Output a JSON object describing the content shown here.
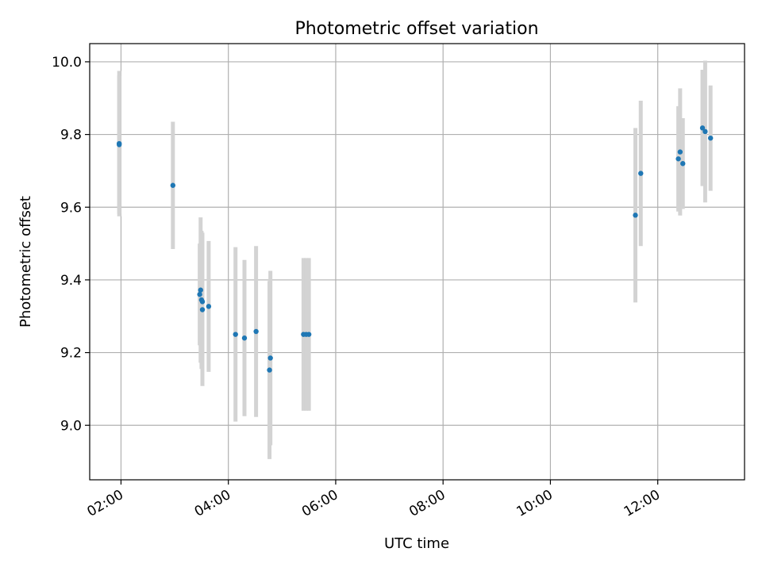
{
  "chart_data": {
    "type": "scatter",
    "title": "Photometric offset variation",
    "xlabel": "UTC time",
    "ylabel": "Photometric offset",
    "x_axis_type": "time",
    "xlim": [
      "01:25",
      "13:37"
    ],
    "ylim": [
      8.85,
      10.05
    ],
    "xticks": [
      "02:00",
      "04:00",
      "06:00",
      "08:00",
      "10:00",
      "12:00"
    ],
    "yticks": [
      9.0,
      9.2,
      9.4,
      9.6,
      9.8,
      10.0
    ],
    "ytick_labels": [
      "9.0",
      "9.2",
      "9.4",
      "9.6",
      "9.8",
      "10.0"
    ],
    "grid": true,
    "marker_color": "#1f77b4",
    "errorbar_color": "#d3d3d3",
    "series": [
      {
        "points": [
          {
            "x": "01:58",
            "y": 9.775,
            "err": 0.2
          },
          {
            "x": "01:58",
            "y": 9.772,
            "err": 0.19
          },
          {
            "x": "02:58",
            "y": 9.66,
            "err": 0.175
          },
          {
            "x": "03:28",
            "y": 9.36,
            "err": 0.14
          },
          {
            "x": "03:29",
            "y": 9.372,
            "err": 0.2
          },
          {
            "x": "03:30",
            "y": 9.345,
            "err": 0.19
          },
          {
            "x": "03:31",
            "y": 9.34,
            "err": 0.19
          },
          {
            "x": "03:31",
            "y": 9.318,
            "err": 0.21
          },
          {
            "x": "03:38",
            "y": 9.327,
            "err": 0.18
          },
          {
            "x": "04:08",
            "y": 9.25,
            "err": 0.24
          },
          {
            "x": "04:18",
            "y": 9.24,
            "err": 0.215
          },
          {
            "x": "04:31",
            "y": 9.258,
            "err": 0.235
          },
          {
            "x": "04:47",
            "y": 9.185,
            "err": 0.24
          },
          {
            "x": "04:46",
            "y": 9.152,
            "err": 0.245
          },
          {
            "x": "05:24",
            "y": 9.25,
            "err": 0.21
          },
          {
            "x": "05:27",
            "y": 9.25,
            "err": 0.21
          },
          {
            "x": "05:30",
            "y": 9.25,
            "err": 0.21
          },
          {
            "x": "11:35",
            "y": 9.578,
            "err": 0.24
          },
          {
            "x": "11:41",
            "y": 9.693,
            "err": 0.2
          },
          {
            "x": "12:23",
            "y": 9.733,
            "err": 0.145
          },
          {
            "x": "12:25",
            "y": 9.752,
            "err": 0.175
          },
          {
            "x": "12:28",
            "y": 9.72,
            "err": 0.125
          },
          {
            "x": "12:50",
            "y": 9.818,
            "err": 0.16
          },
          {
            "x": "12:53",
            "y": 9.808,
            "err": 0.195
          },
          {
            "x": "12:59",
            "y": 9.79,
            "err": 0.145
          }
        ]
      }
    ]
  }
}
